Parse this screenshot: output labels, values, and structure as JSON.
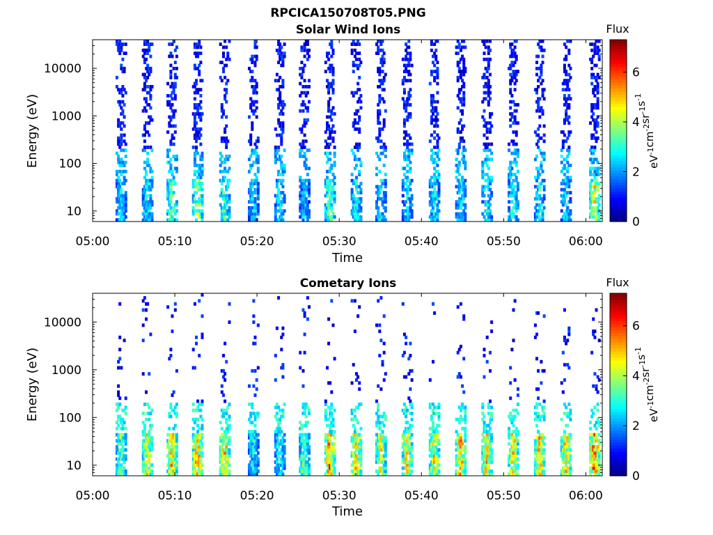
{
  "figure_title": "RPCICA150708T05.PNG",
  "chart_data": [
    {
      "type": "heatmap",
      "title": "Solar Wind Ions",
      "xlabel": "Time",
      "ylabel": "Energy (eV)",
      "y_scale": "log",
      "xlim": [
        "05:00",
        "06:02"
      ],
      "ylim": [
        6,
        40000
      ],
      "x_ticks": [
        "05:00",
        "05:10",
        "05:20",
        "05:30",
        "05:40",
        "05:50",
        "06:00"
      ],
      "y_ticks": [
        "10",
        "100",
        "1000",
        "10000"
      ],
      "colorbar": {
        "title": "Flux",
        "label_parts": [
          "eV",
          "-1",
          "cm",
          "-2",
          "sr",
          "-1",
          "s",
          "-1"
        ],
        "range": [
          0,
          7.3
        ],
        "ticks": [
          "0",
          "2",
          "4",
          "6"
        ],
        "colormap": "jet"
      },
      "scan_times_min": [
        3.5,
        6.7,
        9.7,
        12.8,
        16.1,
        19.6,
        22.8,
        25.8,
        28.9,
        32.1,
        35.1,
        38.3,
        41.6,
        44.8,
        48.0,
        51.2,
        54.4,
        57.6,
        61.1
      ],
      "peak_flux": [
        3.0,
        3.5,
        4.6,
        5.0,
        4.2,
        3.2,
        3.4,
        3.1,
        4.4,
        3.6,
        3.3,
        3.2,
        3.5,
        3.4,
        3.6,
        3.8,
        3.5,
        3.3,
        5.4
      ]
    },
    {
      "type": "heatmap",
      "title": "Cometary Ions",
      "xlabel": "Time",
      "ylabel": "Energy (eV)",
      "y_scale": "log",
      "xlim": [
        "05:00",
        "06:02"
      ],
      "ylim": [
        6,
        40000
      ],
      "x_ticks": [
        "05:00",
        "05:10",
        "05:20",
        "05:30",
        "05:40",
        "05:50",
        "06:00"
      ],
      "y_ticks": [
        "10",
        "100",
        "1000",
        "10000"
      ],
      "colorbar": {
        "title": "Flux",
        "label_parts": [
          "eV",
          "-1",
          "cm",
          "-2",
          "sr",
          "-1",
          "s",
          "-1"
        ],
        "range": [
          0,
          7.3
        ],
        "ticks": [
          "0",
          "2",
          "4",
          "6"
        ],
        "colormap": "jet"
      },
      "scan_times_min": [
        3.5,
        6.7,
        9.7,
        12.8,
        16.1,
        19.6,
        22.8,
        25.8,
        28.9,
        32.1,
        35.1,
        38.3,
        41.6,
        44.8,
        48.0,
        51.2,
        54.4,
        57.6,
        61.1
      ],
      "peak_flux": [
        4.5,
        5.6,
        6.2,
        6.4,
        6.1,
        3.5,
        3.6,
        4.5,
        6.8,
        6.0,
        5.4,
        6.0,
        5.8,
        6.2,
        5.9,
        6.0,
        6.2,
        6.2,
        7.0
      ]
    }
  ]
}
